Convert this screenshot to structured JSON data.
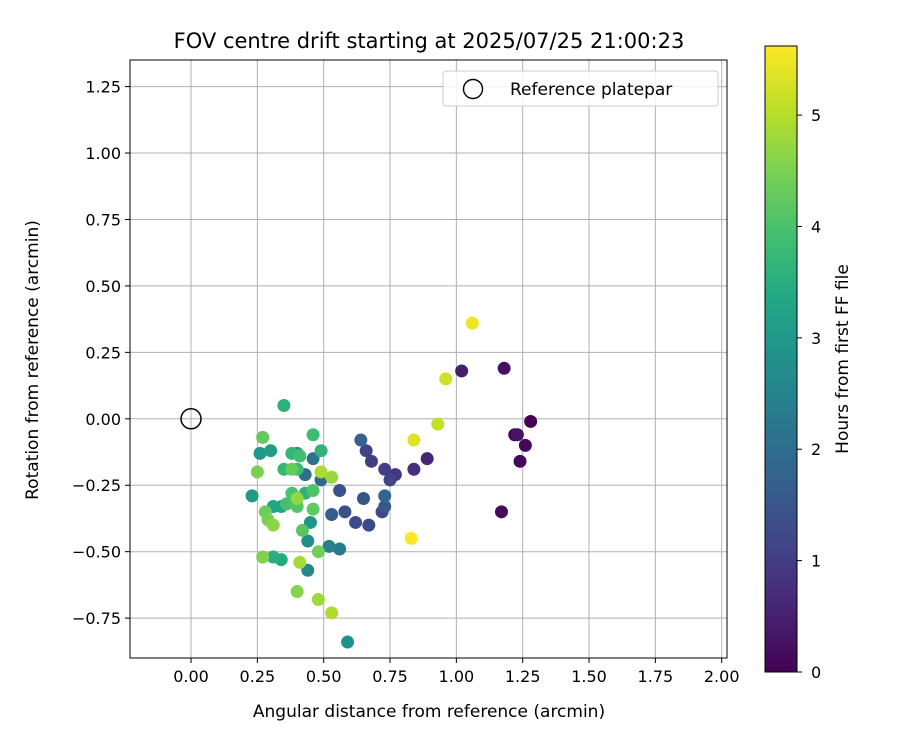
{
  "chart_data": {
    "type": "scatter",
    "title": "FOV centre drift starting at 2025/07/25 21:00:23",
    "xlabel": "Angular distance from reference (arcmin)",
    "ylabel": "Rotation from reference (arcmin)",
    "xlim": [
      -0.23,
      2.02
    ],
    "ylim": [
      -0.9,
      1.35
    ],
    "xticks": [
      "0.00",
      "0.25",
      "0.50",
      "0.75",
      "1.00",
      "1.25",
      "1.50",
      "1.75",
      "2.00"
    ],
    "yticks": [
      "1.25",
      "1.00",
      "0.75",
      "0.50",
      "0.25",
      "0.00",
      "−0.25",
      "−0.50",
      "−0.75"
    ],
    "grid": true,
    "legend": {
      "position": "top-right",
      "entries": [
        "Reference platepar"
      ]
    },
    "reference_point": {
      "x": 0.0,
      "y": 0.0,
      "marker": "open-circle"
    },
    "colorbar": {
      "label": "Hours from first FF file",
      "range": [
        0,
        5.62
      ],
      "ticks": [
        "0",
        "1",
        "2",
        "3",
        "4",
        "5"
      ],
      "colormap": "viridis"
    },
    "points": [
      {
        "x": 1.28,
        "y": -0.01,
        "c": 0.0
      },
      {
        "x": 1.22,
        "y": -0.06,
        "c": 0.05
      },
      {
        "x": 1.26,
        "y": -0.1,
        "c": 0.1
      },
      {
        "x": 1.24,
        "y": -0.16,
        "c": 0.15
      },
      {
        "x": 1.17,
        "y": -0.35,
        "c": 0.2
      },
      {
        "x": 1.18,
        "y": 0.19,
        "c": 0.25
      },
      {
        "x": 1.23,
        "y": -0.06,
        "c": 0.3
      },
      {
        "x": 1.02,
        "y": 0.18,
        "c": 0.45
      },
      {
        "x": 0.89,
        "y": -0.15,
        "c": 0.6
      },
      {
        "x": 0.84,
        "y": -0.19,
        "c": 0.75
      },
      {
        "x": 0.77,
        "y": -0.21,
        "c": 0.9
      },
      {
        "x": 0.73,
        "y": -0.19,
        "c": 1.0
      },
      {
        "x": 0.68,
        "y": -0.16,
        "c": 1.05
      },
      {
        "x": 0.66,
        "y": -0.12,
        "c": 1.1
      },
      {
        "x": 0.75,
        "y": -0.23,
        "c": 1.15
      },
      {
        "x": 0.72,
        "y": -0.35,
        "c": 1.2
      },
      {
        "x": 0.67,
        "y": -0.4,
        "c": 1.25
      },
      {
        "x": 0.62,
        "y": -0.39,
        "c": 1.3
      },
      {
        "x": 0.58,
        "y": -0.35,
        "c": 1.35
      },
      {
        "x": 0.56,
        "y": -0.27,
        "c": 1.4
      },
      {
        "x": 0.65,
        "y": -0.3,
        "c": 1.45
      },
      {
        "x": 0.73,
        "y": -0.33,
        "c": 1.55
      },
      {
        "x": 0.53,
        "y": -0.36,
        "c": 1.65
      },
      {
        "x": 0.64,
        "y": -0.08,
        "c": 1.75
      },
      {
        "x": 0.73,
        "y": -0.29,
        "c": 1.85
      },
      {
        "x": 0.49,
        "y": -0.23,
        "c": 1.95
      },
      {
        "x": 0.43,
        "y": -0.21,
        "c": 2.05
      },
      {
        "x": 0.46,
        "y": -0.15,
        "c": 2.15
      },
      {
        "x": 0.56,
        "y": -0.49,
        "c": 2.3
      },
      {
        "x": 0.52,
        "y": -0.48,
        "c": 2.45
      },
      {
        "x": 0.44,
        "y": -0.57,
        "c": 2.6
      },
      {
        "x": 0.44,
        "y": -0.46,
        "c": 2.7
      },
      {
        "x": 0.59,
        "y": -0.84,
        "c": 2.8
      },
      {
        "x": 0.45,
        "y": -0.39,
        "c": 2.9
      },
      {
        "x": 0.4,
        "y": -0.13,
        "c": 2.95
      },
      {
        "x": 0.26,
        "y": -0.13,
        "c": 3.0
      },
      {
        "x": 0.23,
        "y": -0.29,
        "c": 3.05
      },
      {
        "x": 0.3,
        "y": -0.12,
        "c": 3.1
      },
      {
        "x": 0.34,
        "y": -0.33,
        "c": 3.2
      },
      {
        "x": 0.31,
        "y": -0.33,
        "c": 3.3
      },
      {
        "x": 0.34,
        "y": -0.53,
        "c": 3.4
      },
      {
        "x": 0.31,
        "y": -0.52,
        "c": 3.5
      },
      {
        "x": 0.35,
        "y": 0.05,
        "c": 3.55
      },
      {
        "x": 0.43,
        "y": -0.28,
        "c": 3.6
      },
      {
        "x": 0.49,
        "y": -0.12,
        "c": 3.65
      },
      {
        "x": 0.38,
        "y": -0.13,
        "c": 3.7
      },
      {
        "x": 0.35,
        "y": -0.19,
        "c": 3.75
      },
      {
        "x": 0.4,
        "y": -0.19,
        "c": 3.8
      },
      {
        "x": 0.46,
        "y": -0.06,
        "c": 3.85
      },
      {
        "x": 0.41,
        "y": -0.14,
        "c": 3.9
      },
      {
        "x": 0.36,
        "y": -0.32,
        "c": 3.95
      },
      {
        "x": 0.38,
        "y": -0.28,
        "c": 4.0
      },
      {
        "x": 0.46,
        "y": -0.27,
        "c": 4.05
      },
      {
        "x": 0.4,
        "y": -0.33,
        "c": 4.1
      },
      {
        "x": 0.42,
        "y": -0.42,
        "c": 4.15
      },
      {
        "x": 0.46,
        "y": -0.34,
        "c": 4.2
      },
      {
        "x": 0.27,
        "y": -0.07,
        "c": 4.25
      },
      {
        "x": 0.38,
        "y": -0.19,
        "c": 4.3
      },
      {
        "x": 0.28,
        "y": -0.35,
        "c": 4.35
      },
      {
        "x": 0.48,
        "y": -0.5,
        "c": 4.4
      },
      {
        "x": 0.29,
        "y": -0.38,
        "c": 4.45
      },
      {
        "x": 0.25,
        "y": -0.2,
        "c": 4.5
      },
      {
        "x": 0.27,
        "y": -0.52,
        "c": 4.55
      },
      {
        "x": 0.4,
        "y": -0.65,
        "c": 4.6
      },
      {
        "x": 0.31,
        "y": -0.4,
        "c": 4.65
      },
      {
        "x": 0.4,
        "y": -0.3,
        "c": 4.7
      },
      {
        "x": 0.53,
        "y": -0.22,
        "c": 4.75
      },
      {
        "x": 0.48,
        "y": -0.68,
        "c": 4.8
      },
      {
        "x": 0.41,
        "y": -0.54,
        "c": 4.85
      },
      {
        "x": 0.49,
        "y": -0.2,
        "c": 4.9
      },
      {
        "x": 0.53,
        "y": -0.73,
        "c": 4.95
      },
      {
        "x": 0.93,
        "y": -0.02,
        "c": 5.1
      },
      {
        "x": 0.96,
        "y": 0.15,
        "c": 5.2
      },
      {
        "x": 0.84,
        "y": -0.08,
        "c": 5.35
      },
      {
        "x": 1.06,
        "y": 0.36,
        "c": 5.5
      },
      {
        "x": 0.83,
        "y": -0.45,
        "c": 5.6
      }
    ]
  }
}
